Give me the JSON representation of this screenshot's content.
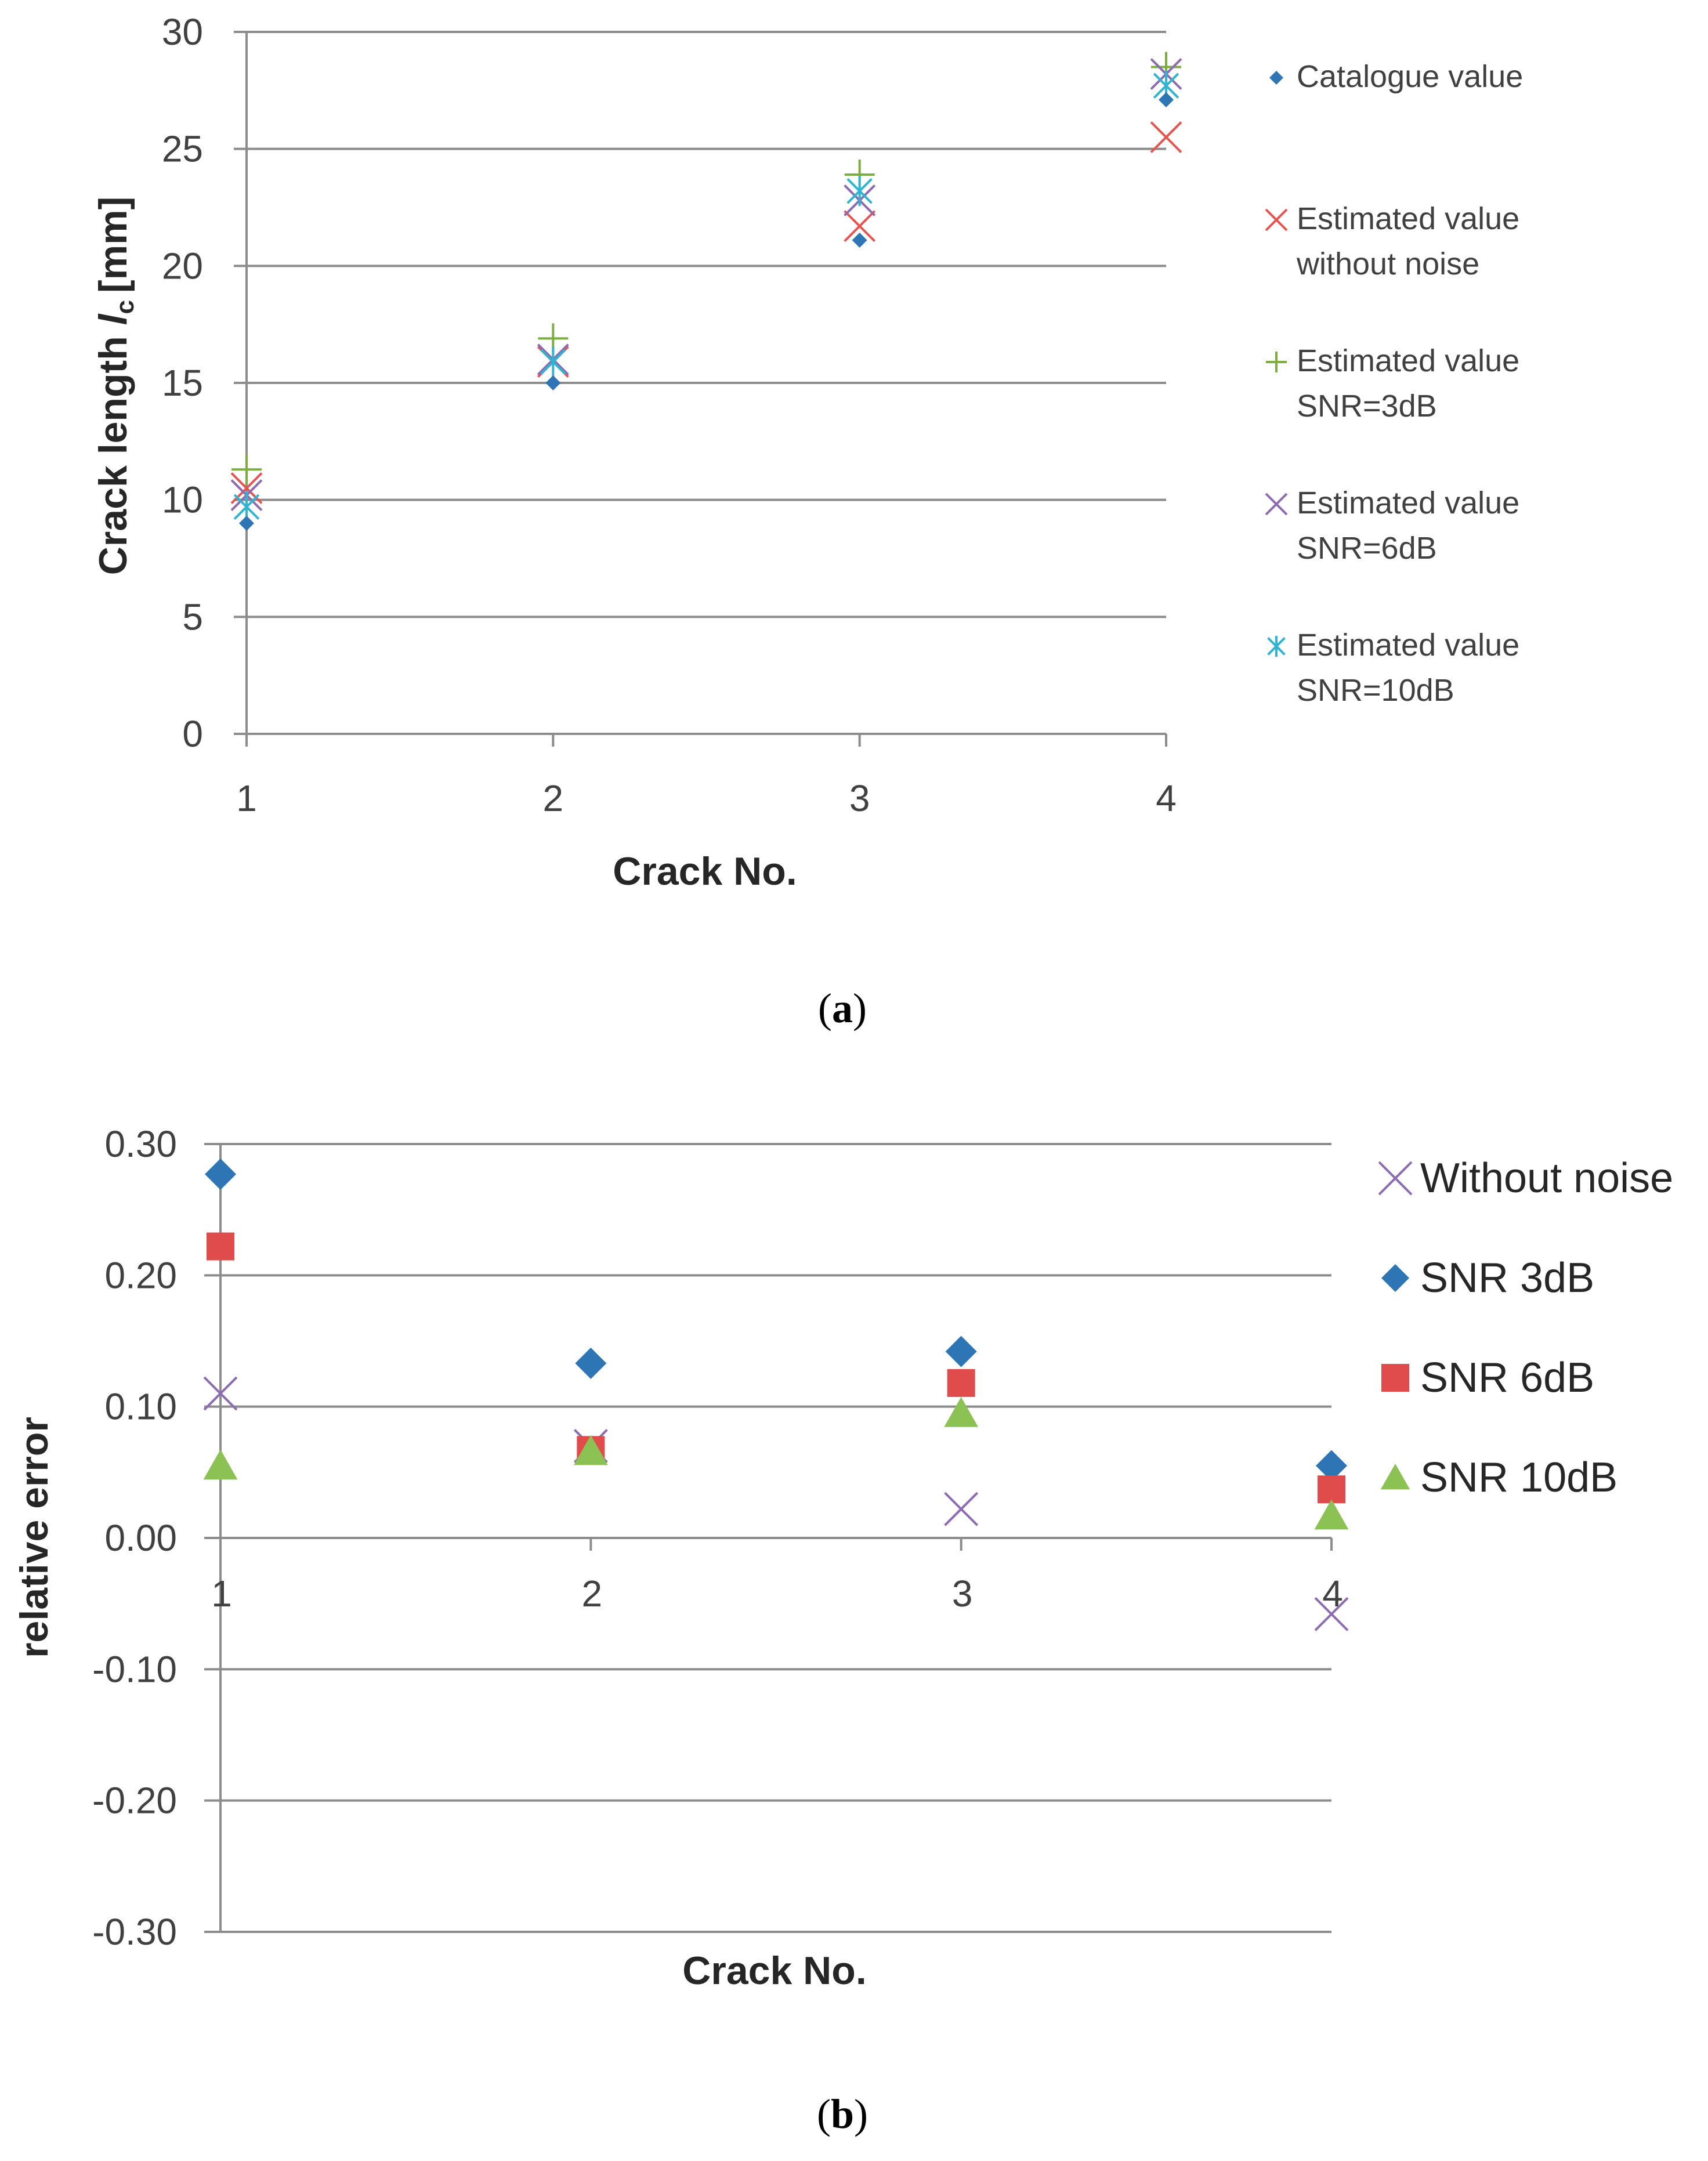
{
  "chart_data": [
    {
      "type": "scatter",
      "panel_label": "a",
      "xlabel": "Crack No.",
      "ylabel": "Crack length",
      "ylabel_symbol": "l",
      "ylabel_subscript": "c",
      "ylabel_unit": "[mm]",
      "x_ticks": [
        "1",
        "2",
        "3",
        "4"
      ],
      "ylim": [
        0,
        30
      ],
      "y_ticks": [
        "0",
        "5",
        "10",
        "15",
        "20",
        "25",
        "30"
      ],
      "grid": true,
      "legend_position": "right",
      "series": [
        {
          "name": "Catalogue value",
          "lines": [
            "Catalogue value"
          ],
          "marker": "diamond",
          "color": "#2e75b6",
          "x": [
            1,
            2,
            3,
            4
          ],
          "values": [
            9.0,
            15.0,
            21.1,
            27.1
          ]
        },
        {
          "name": "Estimated value without noise",
          "lines": [
            "Estimated value",
            "without noise"
          ],
          "marker": "x",
          "color": "#e8524f",
          "x": [
            1,
            2,
            3,
            4
          ],
          "values": [
            10.5,
            15.9,
            21.7,
            25.5
          ]
        },
        {
          "name": "Estimated value SNR=3dB",
          "lines": [
            "Estimated value",
            "SNR=3dB"
          ],
          "marker": "plus",
          "color": "#7cae3f",
          "x": [
            1,
            2,
            3,
            4
          ],
          "values": [
            11.3,
            16.9,
            23.9,
            28.5
          ]
        },
        {
          "name": "Estimated value SNR=6dB",
          "lines": [
            "Estimated value",
            "SNR=6dB"
          ],
          "marker": "x",
          "color": "#8c6bb1",
          "x": [
            1,
            2,
            3,
            4
          ],
          "values": [
            10.2,
            16.0,
            22.8,
            28.2
          ]
        },
        {
          "name": "Estimated value SNR=10dB",
          "lines": [
            "Estimated value",
            "SNR=10dB"
          ],
          "marker": "asterisk",
          "color": "#2fb5d2",
          "x": [
            1,
            2,
            3,
            4
          ],
          "values": [
            9.7,
            15.9,
            23.2,
            27.7
          ]
        }
      ]
    },
    {
      "type": "scatter",
      "panel_label": "b",
      "xlabel": "Crack No.",
      "ylabel": "relative error",
      "x_ticks": [
        "1",
        "2",
        "3",
        "4"
      ],
      "ylim": [
        -0.3,
        0.3
      ],
      "y_ticks": [
        "-0.30",
        "-0.20",
        "-0.10",
        "0.00",
        "0.10",
        "0.20",
        "0.30"
      ],
      "grid": true,
      "legend_position": "right",
      "series": [
        {
          "name": "Without noise",
          "marker": "x",
          "color": "#8c6bb1",
          "x": [
            1,
            2,
            3,
            4
          ],
          "values": [
            0.11,
            0.07,
            0.022,
            -0.058
          ]
        },
        {
          "name": "SNR 3dB",
          "marker": "diamond",
          "color": "#2e75b6",
          "x": [
            1,
            2,
            3,
            4
          ],
          "values": [
            0.277,
            0.133,
            0.142,
            0.055
          ]
        },
        {
          "name": "SNR 6dB",
          "marker": "square",
          "color": "#e04b4b",
          "x": [
            1,
            2,
            3,
            4
          ],
          "values": [
            0.222,
            0.067,
            0.118,
            0.037
          ]
        },
        {
          "name": "SNR 10dB",
          "marker": "triangle",
          "color": "#8cc153",
          "x": [
            1,
            2,
            3,
            4
          ],
          "values": [
            0.055,
            0.066,
            0.095,
            0.017
          ]
        }
      ]
    }
  ]
}
